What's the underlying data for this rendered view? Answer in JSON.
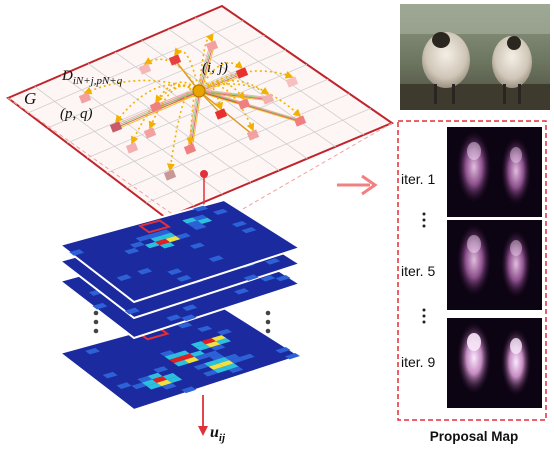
{
  "graph": {
    "label_G": "G",
    "label_D": "D",
    "label_D_sub": "iN+j,pN+q",
    "label_ij": "(i, j)",
    "label_pq": "(p, q)",
    "grid_size": 8,
    "colors": {
      "border": "#c0252c",
      "edge": "#f2b100",
      "center": "#e8a400"
    }
  },
  "heatmaps": {
    "output_label": "u",
    "output_sub": "ij",
    "ellipsis_glyph": "⋮",
    "colors": {
      "low": "#1b2a9e",
      "mid": "#2bc0e0",
      "high": "#f0e040",
      "hot": "#e02020"
    }
  },
  "arrow": {
    "color": "#f28080"
  },
  "photo": {
    "subject": "two sheep",
    "background": "#5d6a50"
  },
  "proposal": {
    "title": "Proposal Map",
    "iterations": [
      {
        "label": "iter. 1"
      },
      {
        "label": "iter. 5"
      },
      {
        "label": "iter. 9"
      }
    ],
    "ellipsis_glyph": "⋮",
    "border_color": "#e0303a"
  }
}
